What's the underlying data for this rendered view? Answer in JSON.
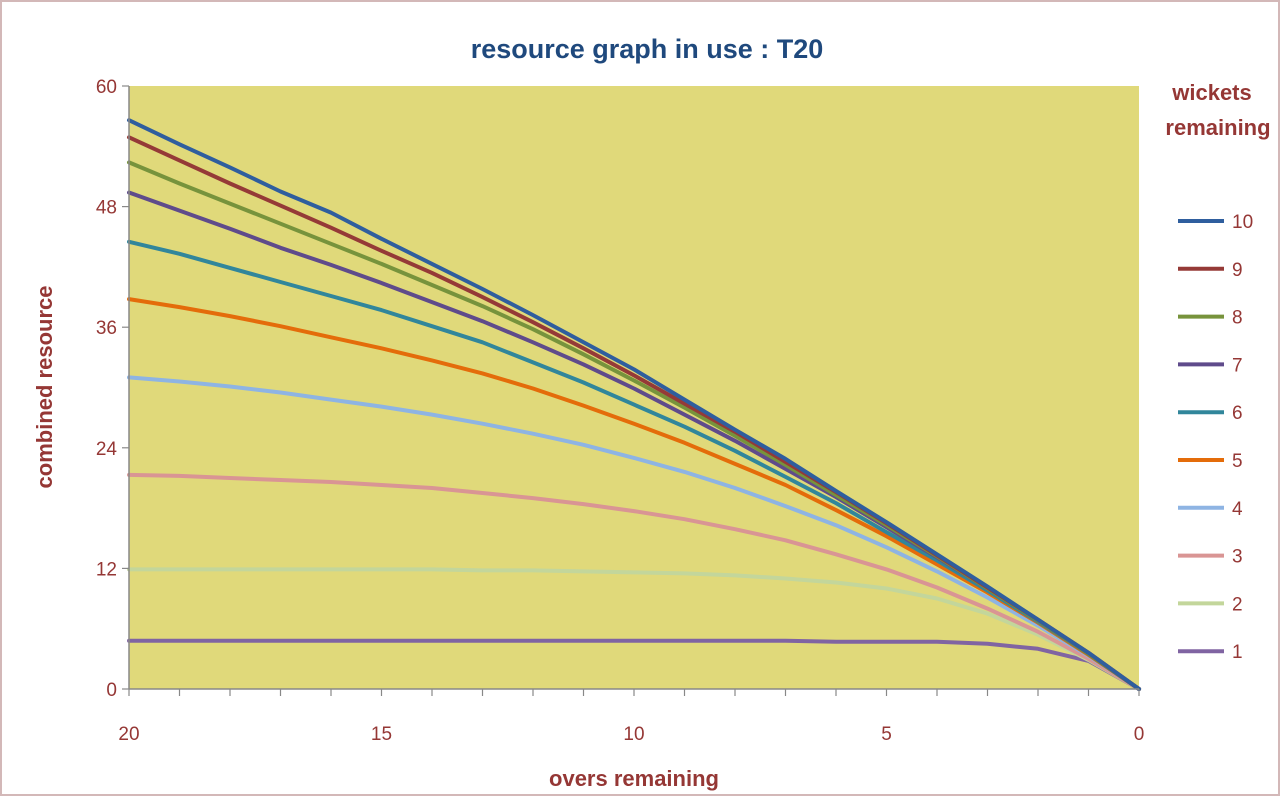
{
  "chart_data": {
    "type": "line",
    "title": "resource graph in use : T20",
    "xlabel": "overs remaining",
    "ylabel": "combined resource",
    "legend_title_lines": [
      "wickets",
      "remaining"
    ],
    "legend_position": "right",
    "x_reversed": true,
    "xlim": [
      0,
      20
    ],
    "ylim": [
      0,
      60
    ],
    "x_ticks": [
      20,
      15,
      10,
      5,
      0
    ],
    "y_ticks": [
      0,
      12,
      24,
      36,
      48,
      60
    ],
    "grid": false,
    "plot_background": "#e0d97a",
    "x": [
      20,
      19,
      18,
      17,
      16,
      15,
      14,
      13,
      12,
      11,
      10,
      9,
      8,
      7,
      6,
      5,
      4,
      3,
      2,
      1,
      0
    ],
    "series": [
      {
        "name": "10",
        "color": "#2f5e9e",
        "values": [
          56.6,
          54.2,
          51.9,
          49.5,
          47.4,
          44.8,
          42.3,
          39.8,
          37.2,
          34.5,
          31.8,
          28.8,
          25.8,
          22.9,
          19.7,
          16.6,
          13.4,
          10.2,
          6.9,
          3.6,
          0
        ]
      },
      {
        "name": "9",
        "color": "#953a37",
        "values": [
          54.9,
          52.6,
          50.3,
          48.1,
          45.9,
          43.6,
          41.4,
          39.0,
          36.5,
          33.9,
          31.2,
          28.4,
          25.6,
          22.6,
          19.6,
          16.5,
          13.3,
          10.1,
          6.9,
          3.6,
          0
        ]
      },
      {
        "name": "8",
        "color": "#77933c",
        "values": [
          52.4,
          50.3,
          48.3,
          46.3,
          44.3,
          42.3,
          40.2,
          38.1,
          35.8,
          33.3,
          30.7,
          28.0,
          25.2,
          22.3,
          19.3,
          16.3,
          13.2,
          10.0,
          6.8,
          3.5,
          0
        ]
      },
      {
        "name": "7",
        "color": "#5f4b8b",
        "values": [
          49.4,
          47.6,
          45.8,
          43.9,
          42.2,
          40.4,
          38.5,
          36.6,
          34.5,
          32.3,
          29.9,
          27.3,
          24.7,
          21.9,
          19.1,
          16.1,
          13.1,
          10.0,
          6.8,
          3.5,
          0
        ]
      },
      {
        "name": "6",
        "color": "#31869b",
        "values": [
          44.5,
          43.3,
          41.9,
          40.5,
          39.1,
          37.7,
          36.1,
          34.5,
          32.5,
          30.5,
          28.3,
          26.1,
          23.7,
          21.1,
          18.5,
          15.6,
          12.8,
          9.8,
          6.7,
          3.5,
          0
        ]
      },
      {
        "name": "5",
        "color": "#e46c0a",
        "values": [
          38.8,
          38.0,
          37.1,
          36.1,
          35.0,
          33.9,
          32.7,
          31.4,
          29.9,
          28.2,
          26.4,
          24.5,
          22.4,
          20.3,
          17.8,
          15.2,
          12.4,
          9.6,
          6.6,
          3.4,
          0
        ]
      },
      {
        "name": "4",
        "color": "#8eb4e3",
        "values": [
          31.0,
          30.6,
          30.1,
          29.5,
          28.8,
          28.1,
          27.3,
          26.4,
          25.4,
          24.3,
          23.0,
          21.6,
          20.0,
          18.2,
          16.3,
          14.1,
          11.7,
          9.1,
          6.3,
          3.3,
          0
        ]
      },
      {
        "name": "3",
        "color": "#d99594",
        "values": [
          21.3,
          21.2,
          21.0,
          20.8,
          20.6,
          20.3,
          20.0,
          19.5,
          19.0,
          18.4,
          17.7,
          16.9,
          15.9,
          14.8,
          13.4,
          11.9,
          10.1,
          8.0,
          5.7,
          3.0,
          0
        ]
      },
      {
        "name": "2",
        "color": "#c3d69b",
        "values": [
          11.9,
          11.9,
          11.9,
          11.9,
          11.9,
          11.9,
          11.9,
          11.8,
          11.8,
          11.7,
          11.6,
          11.5,
          11.3,
          11.0,
          10.6,
          10.0,
          9.0,
          7.5,
          5.4,
          2.9,
          0
        ]
      },
      {
        "name": "1",
        "color": "#8064a2",
        "values": [
          4.8,
          4.8,
          4.8,
          4.8,
          4.8,
          4.8,
          4.8,
          4.8,
          4.8,
          4.8,
          4.8,
          4.8,
          4.8,
          4.8,
          4.7,
          4.7,
          4.7,
          4.5,
          4.0,
          2.8,
          0
        ]
      }
    ]
  }
}
